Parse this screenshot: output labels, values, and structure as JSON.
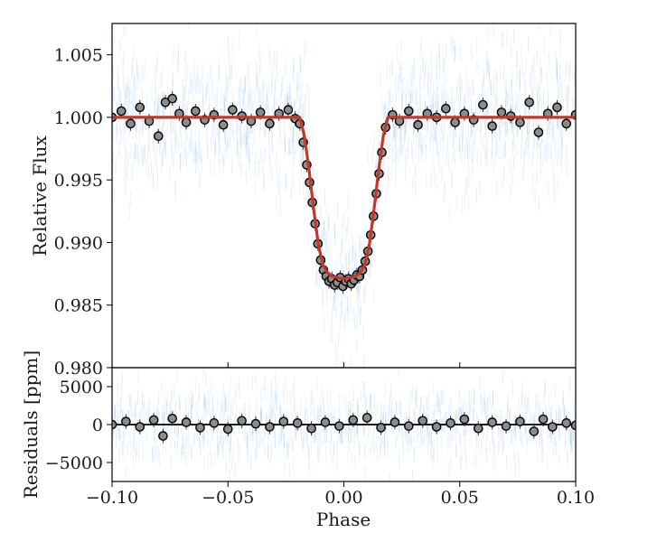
{
  "chart_data": [
    {
      "type": "scatter",
      "panel": "light-curve",
      "title": "",
      "xlabel": "",
      "ylabel": "Relative Flux",
      "xlim": [
        -0.1,
        0.1
      ],
      "ylim": [
        0.98,
        1.0075
      ],
      "yticks": [
        0.98,
        0.985,
        0.99,
        0.995,
        1.0,
        1.005
      ],
      "ytick_labels": [
        "0.980",
        "0.985",
        "0.990",
        "0.995",
        "1.000",
        "1.005"
      ],
      "grid": false,
      "legend": "none",
      "colors": {
        "raw": "#3d8fe0",
        "binned": "#8c8c8c",
        "model": "#c0392b"
      },
      "series": [
        {
          "role": "binned data",
          "x": [
            -0.1,
            -0.096,
            -0.092,
            -0.088,
            -0.084,
            -0.08,
            -0.077,
            -0.074,
            -0.071,
            -0.068,
            -0.064,
            -0.06,
            -0.056,
            -0.052,
            -0.048,
            -0.044,
            -0.04,
            -0.036,
            -0.032,
            -0.028,
            -0.024,
            -0.021,
            -0.019,
            -0.0175,
            -0.016,
            -0.0148,
            -0.0136,
            -0.0124,
            -0.0112,
            -0.01,
            -0.0088,
            -0.0076,
            -0.0064,
            -0.0052,
            -0.004,
            -0.0028,
            -0.0016,
            -0.0004,
            0.0008,
            0.002,
            0.0032,
            0.0044,
            0.0056,
            0.0068,
            0.008,
            0.0092,
            0.0104,
            0.0116,
            0.0128,
            0.014,
            0.0152,
            0.0164,
            0.018,
            0.021,
            0.024,
            0.028,
            0.032,
            0.036,
            0.04,
            0.044,
            0.048,
            0.052,
            0.056,
            0.06,
            0.064,
            0.068,
            0.072,
            0.076,
            0.08,
            0.084,
            0.088,
            0.092,
            0.096,
            0.1
          ],
          "y": [
            1.0,
            1.0005,
            0.9995,
            1.0008,
            0.9997,
            0.9985,
            1.0012,
            1.0015,
            1.0003,
            0.9996,
            1.0005,
            0.9998,
            1.0002,
            0.9994,
            1.0006,
            1.0001,
            0.9997,
            1.0004,
            0.9995,
            1.0003,
            1.0006,
            0.9999,
            0.9995,
            0.998,
            0.9962,
            0.9948,
            0.9932,
            0.9915,
            0.9899,
            0.9886,
            0.9878,
            0.9873,
            0.9869,
            0.9871,
            0.9866,
            0.9868,
            0.9872,
            0.9865,
            0.9869,
            0.9871,
            0.9867,
            0.987,
            0.9874,
            0.9873,
            0.9878,
            0.9885,
            0.9893,
            0.9906,
            0.9921,
            0.9939,
            0.9955,
            0.9972,
            0.9992,
            1.0002,
            0.9997,
            1.0005,
            0.9994,
            1.0003,
            1.0,
            1.0007,
            0.9996,
            1.0003,
            0.9998,
            1.001,
            0.9993,
            1.0004,
            1.0001,
            0.9996,
            1.0012,
            0.9988,
            1.0003,
            1.0008,
            0.9995,
            1.0002
          ]
        },
        {
          "role": "transit model",
          "x": [
            -0.1,
            -0.019,
            -0.017,
            -0.015,
            -0.013,
            -0.011,
            -0.009,
            -0.007,
            -0.005,
            -0.003,
            0.0,
            0.003,
            0.005,
            0.007,
            0.009,
            0.011,
            0.013,
            0.015,
            0.017,
            0.019,
            0.1
          ],
          "y": [
            1.0,
            1.0,
            0.9985,
            0.9958,
            0.9926,
            0.9898,
            0.9882,
            0.9876,
            0.9873,
            0.9872,
            0.9871,
            0.9872,
            0.9873,
            0.9876,
            0.9882,
            0.9898,
            0.9926,
            0.9958,
            0.9985,
            1.0,
            1.0
          ]
        }
      ]
    },
    {
      "type": "scatter",
      "panel": "residuals",
      "title": "",
      "xlabel": "Phase",
      "ylabel": "Residuals [ppm]",
      "xlim": [
        -0.1,
        0.1
      ],
      "ylim": [
        -7500,
        7500
      ],
      "xticks": [
        -0.1,
        -0.05,
        0.0,
        0.05,
        0.1
      ],
      "xtick_labels": [
        "−0.10",
        "−0.05",
        "0.00",
        "0.05",
        "0.10"
      ],
      "yticks": [
        -5000,
        0,
        5000
      ],
      "ytick_labels": [
        "−5000",
        "0",
        "5000"
      ],
      "grid": false,
      "legend": "none",
      "series": [
        {
          "role": "binned residuals",
          "x": [
            -0.1,
            -0.094,
            -0.088,
            -0.082,
            -0.078,
            -0.074,
            -0.068,
            -0.062,
            -0.056,
            -0.05,
            -0.044,
            -0.038,
            -0.032,
            -0.026,
            -0.02,
            -0.014,
            -0.008,
            -0.002,
            0.004,
            0.01,
            0.016,
            0.022,
            0.028,
            0.034,
            0.04,
            0.046,
            0.052,
            0.058,
            0.064,
            0.07,
            0.076,
            0.082,
            0.086,
            0.09,
            0.096,
            0.1
          ],
          "y": [
            0,
            400,
            -300,
            600,
            -1500,
            800,
            300,
            -400,
            200,
            -600,
            500,
            100,
            -300,
            400,
            200,
            -500,
            300,
            -200,
            600,
            900,
            -400,
            300,
            -200,
            500,
            -300,
            200,
            700,
            -500,
            300,
            -200,
            400,
            -900,
            700,
            -300,
            200,
            -100
          ]
        },
        {
          "role": "zero line",
          "x": [
            -0.1,
            0.1
          ],
          "y": [
            0,
            0
          ]
        }
      ]
    }
  ]
}
